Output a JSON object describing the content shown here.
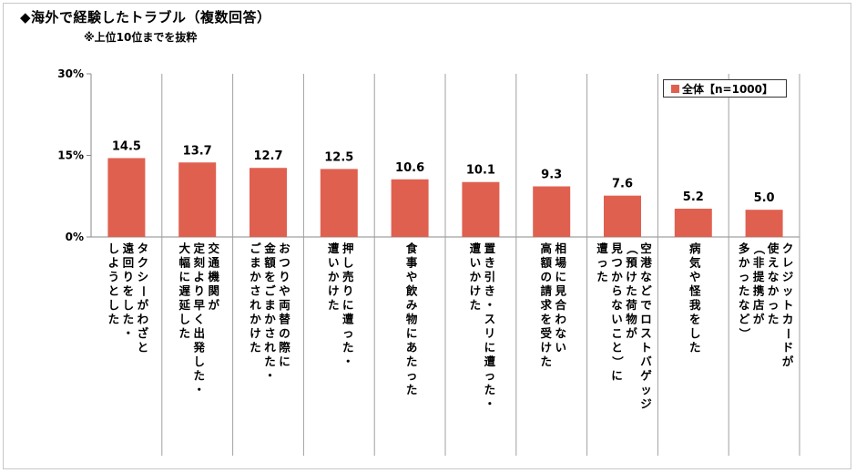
{
  "title": "◆海外で経験したトラブル（複数回答）",
  "subtitle": "※上位10位までを抜粋",
  "legend": {
    "label": "全体【n=1000】"
  },
  "colors": {
    "bar": "#e06050",
    "axis": "#888888",
    "divider": "#a0a0a0"
  },
  "chart_data": {
    "type": "bar",
    "title": "◆海外で経験したトラブル（複数回答）",
    "subtitle": "※上位10位までを抜粋",
    "xlabel": "",
    "ylabel": "",
    "ylim": [
      0,
      30
    ],
    "yticks": [
      "0%",
      "15%",
      "30%"
    ],
    "grid": false,
    "legend_position": "top-right",
    "categories": [
      "タクシーがわざと遠回りをした・しようとした",
      "交通機関が定刻より早く出発した・大幅に遅延した",
      "おつりや両替の際に金額をごまかされた・ごまかされかけた",
      "押し売りに遭った・遭いかけた",
      "食事や飲み物にあたった",
      "置き引き・スリに遭った・遭いかけた",
      "相場に見合わない高額の請求を受けた",
      "空港などでロストバゲッジ（預けた荷物が見つからないこと）に遭った",
      "病気や怪我をした",
      "クレジットカードが使えなかった（非提携店が多かったなど）"
    ],
    "label_columns": [
      [
        "タクシーがわざと",
        "遠回りをした・",
        "しようとした"
      ],
      [
        "交通機関が",
        "定刻より早く出発した・",
        "大幅に遅延した"
      ],
      [
        "おつりや両替の際に",
        "金額をごまかされた・",
        "ごまかされかけた"
      ],
      [
        "押し売りに遭った・",
        "遭いかけた"
      ],
      [
        "食事や飲み物にあたった"
      ],
      [
        "置き引き・スリに遭った・",
        "遭いかけた"
      ],
      [
        "相場に見合わない",
        "高額の請求を受けた"
      ],
      [
        "空港などでロストバゲッジ",
        "（預けた荷物が",
        "見つからないこと）に",
        "遭った"
      ],
      [
        "病気や怪我をした"
      ],
      [
        "クレジットカードが",
        "使えなかった",
        "（非提携店が",
        "多かったなど）"
      ]
    ],
    "series": [
      {
        "name": "全体【n=1000】",
        "values": [
          14.5,
          13.7,
          12.7,
          12.5,
          10.6,
          10.1,
          9.3,
          7.6,
          5.2,
          5.0
        ]
      }
    ],
    "value_labels": [
      "14.5",
      "13.7",
      "12.7",
      "12.5",
      "10.6",
      "10.1",
      "9.3",
      "7.6",
      "5.2",
      "5.0"
    ]
  }
}
